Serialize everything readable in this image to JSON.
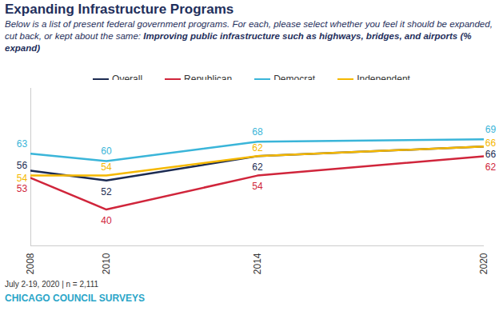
{
  "chart_data": {
    "type": "line",
    "title": "Expanding Infrastructure Programs",
    "subtitle": "Below is a list of present federal government programs. For each, please select whether you feel it should be expanded, cut back, or kept about the same: ",
    "subtitle_emphasis": "Improving public infrastructure such as highways, bridges, and airports (% expand)",
    "caption": "July 2-19, 2020 | n = 2,111",
    "source": "CHICAGO COUNCIL SURVEYS",
    "x": [
      2008,
      2010,
      2014,
      2020
    ],
    "series": [
      {
        "name": "Overall",
        "color": "#1c2b52",
        "values": [
          56,
          52,
          62,
          66
        ]
      },
      {
        "name": "Republican",
        "color": "#d0253b",
        "values": [
          53,
          40,
          54,
          62
        ]
      },
      {
        "name": "Democrat",
        "color": "#3ab5d9",
        "values": [
          63,
          60,
          68,
          69
        ]
      },
      {
        "name": "Independent",
        "color": "#f5b800",
        "values": [
          54,
          54,
          62,
          66
        ]
      }
    ],
    "xlim": [
      2008,
      2020
    ],
    "xticks": [
      2008,
      2010,
      2014,
      2020
    ],
    "ylim": [
      25,
      90
    ],
    "legend": "top",
    "data_labels": true,
    "tick_labels": "x",
    "grid": false
  }
}
